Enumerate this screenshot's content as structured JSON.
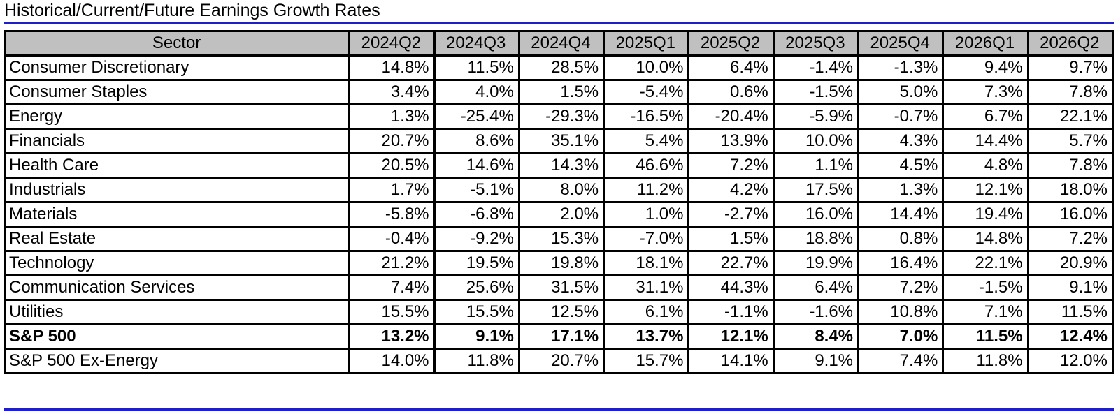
{
  "title": "Historical/Current/Future Earnings Growth Rates",
  "table": {
    "columns": [
      "Sector",
      "2024Q2",
      "2024Q3",
      "2024Q4",
      "2025Q1",
      "2025Q2",
      "2025Q3",
      "2025Q4",
      "2026Q1",
      "2026Q2"
    ],
    "rows": [
      {
        "sector": "Consumer Discretionary",
        "values": [
          "14.8%",
          "11.5%",
          "28.5%",
          "10.0%",
          "6.4%",
          "-1.4%",
          "-1.3%",
          "9.4%",
          "9.7%"
        ]
      },
      {
        "sector": "Consumer Staples",
        "values": [
          "3.4%",
          "4.0%",
          "1.5%",
          "-5.4%",
          "0.6%",
          "-1.5%",
          "5.0%",
          "7.3%",
          "7.8%"
        ]
      },
      {
        "sector": "Energy",
        "values": [
          "1.3%",
          "-25.4%",
          "-29.3%",
          "-16.5%",
          "-20.4%",
          "-5.9%",
          "-0.7%",
          "6.7%",
          "22.1%"
        ]
      },
      {
        "sector": "Financials",
        "values": [
          "20.7%",
          "8.6%",
          "35.1%",
          "5.4%",
          "13.9%",
          "10.0%",
          "4.3%",
          "14.4%",
          "5.7%"
        ]
      },
      {
        "sector": "Health Care",
        "values": [
          "20.5%",
          "14.6%",
          "14.3%",
          "46.6%",
          "7.2%",
          "1.1%",
          "4.5%",
          "4.8%",
          "7.8%"
        ]
      },
      {
        "sector": "Industrials",
        "values": [
          "1.7%",
          "-5.1%",
          "8.0%",
          "11.2%",
          "4.2%",
          "17.5%",
          "1.3%",
          "12.1%",
          "18.0%"
        ]
      },
      {
        "sector": "Materials",
        "values": [
          "-5.8%",
          "-6.8%",
          "2.0%",
          "1.0%",
          "-2.7%",
          "16.0%",
          "14.4%",
          "19.4%",
          "16.0%"
        ]
      },
      {
        "sector": "Real Estate",
        "values": [
          "-0.4%",
          "-9.2%",
          "15.3%",
          "-7.0%",
          "1.5%",
          "18.8%",
          "0.8%",
          "14.8%",
          "7.2%"
        ]
      },
      {
        "sector": "Technology",
        "values": [
          "21.2%",
          "19.5%",
          "19.8%",
          "18.1%",
          "22.7%",
          "19.9%",
          "16.4%",
          "22.1%",
          "20.9%"
        ]
      },
      {
        "sector": "Communication Services",
        "values": [
          "7.4%",
          "25.6%",
          "31.5%",
          "31.1%",
          "44.3%",
          "6.4%",
          "7.2%",
          "-1.5%",
          "9.1%"
        ]
      },
      {
        "sector": "Utilities",
        "values": [
          "15.5%",
          "15.5%",
          "12.5%",
          "6.1%",
          "-1.1%",
          "-1.6%",
          "10.8%",
          "7.1%",
          "11.5%"
        ]
      },
      {
        "sector": "S&P 500",
        "bold": true,
        "values": [
          "13.2%",
          "9.1%",
          "17.1%",
          "13.7%",
          "12.1%",
          "8.4%",
          "7.0%",
          "11.5%",
          "12.4%"
        ]
      },
      {
        "sector": "S&P 500 Ex-Energy",
        "values": [
          "14.0%",
          "11.8%",
          "20.7%",
          "15.7%",
          "14.1%",
          "9.1%",
          "7.4%",
          "11.8%",
          "12.0%"
        ]
      }
    ]
  },
  "colors": {
    "rule": "#1f1fc8",
    "header_bg": "#c0c0c0",
    "grid": "#000000"
  }
}
